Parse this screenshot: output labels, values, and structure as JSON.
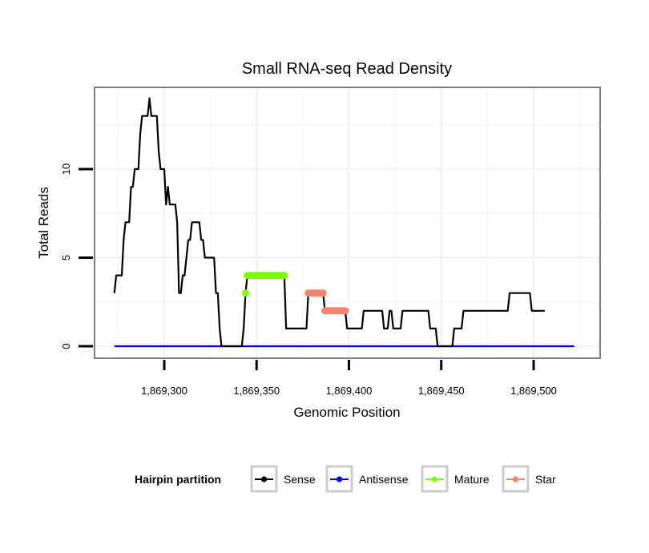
{
  "chart_data": {
    "type": "line",
    "title": "Small RNA-seq Read Density",
    "xlabel": "Genomic Position",
    "ylabel": "Total Reads",
    "xlim": [
      1869262,
      1869533
    ],
    "ylim": [
      -0.7,
      14.7
    ],
    "x_ticks": [
      {
        "value": 1869300,
        "label": "1,869,300"
      },
      {
        "value": 1869350,
        "label": "1,869,350"
      },
      {
        "value": 1869400,
        "label": "1,869,400"
      },
      {
        "value": 1869450,
        "label": "1,869,450"
      },
      {
        "value": 1869500,
        "label": "1,869,500"
      }
    ],
    "y_ticks": [
      {
        "value": 0,
        "label": "0"
      },
      {
        "value": 5,
        "label": "5"
      },
      {
        "value": 10,
        "label": "10"
      }
    ],
    "x_minor": [
      1869275,
      1869325,
      1869375,
      1869425,
      1869475,
      1869525
    ],
    "y_minor": [
      2.5,
      7.5,
      12.5
    ],
    "grid": true,
    "legend": {
      "title": "Hairpin partition",
      "position": "bottom",
      "entries": [
        {
          "name": "Sense",
          "color": "#000000"
        },
        {
          "name": "Antisense",
          "color": "#0000ff"
        },
        {
          "name": "Mature",
          "color": "#7fff00"
        },
        {
          "name": "Star",
          "color": "#fa8072"
        }
      ]
    },
    "series": [
      {
        "name": "Sense",
        "color": "#000000",
        "style": "line",
        "points": [
          [
            1869273,
            3
          ],
          [
            1869274,
            4
          ],
          [
            1869275,
            4
          ],
          [
            1869276,
            4
          ],
          [
            1869277,
            4
          ],
          [
            1869278,
            6
          ],
          [
            1869279,
            7
          ],
          [
            1869280,
            7
          ],
          [
            1869281,
            7
          ],
          [
            1869282,
            9
          ],
          [
            1869283,
            9
          ],
          [
            1869284,
            10
          ],
          [
            1869285,
            10
          ],
          [
            1869286,
            10
          ],
          [
            1869287,
            12
          ],
          [
            1869288,
            13
          ],
          [
            1869289,
            13
          ],
          [
            1869290,
            13
          ],
          [
            1869291,
            13
          ],
          [
            1869292,
            14
          ],
          [
            1869293,
            13
          ],
          [
            1869294,
            13
          ],
          [
            1869295,
            13
          ],
          [
            1869296,
            13
          ],
          [
            1869297,
            11
          ],
          [
            1869298,
            10
          ],
          [
            1869299,
            10
          ],
          [
            1869300,
            10
          ],
          [
            1869301,
            8
          ],
          [
            1869302,
            9
          ],
          [
            1869303,
            8
          ],
          [
            1869304,
            8
          ],
          [
            1869305,
            8
          ],
          [
            1869306,
            8
          ],
          [
            1869307,
            7
          ],
          [
            1869308,
            3
          ],
          [
            1869309,
            3
          ],
          [
            1869310,
            4
          ],
          [
            1869311,
            4
          ],
          [
            1869312,
            5
          ],
          [
            1869313,
            6
          ],
          [
            1869314,
            6
          ],
          [
            1869315,
            7
          ],
          [
            1869316,
            7
          ],
          [
            1869317,
            7
          ],
          [
            1869318,
            7
          ],
          [
            1869319,
            7
          ],
          [
            1869320,
            6
          ],
          [
            1869321,
            6
          ],
          [
            1869322,
            5
          ],
          [
            1869323,
            5
          ],
          [
            1869324,
            5
          ],
          [
            1869325,
            5
          ],
          [
            1869326,
            5
          ],
          [
            1869327,
            5
          ],
          [
            1869328,
            3
          ],
          [
            1869329,
            3
          ],
          [
            1869330,
            1
          ],
          [
            1869331,
            0
          ],
          [
            1869332,
            0
          ],
          [
            1869333,
            0
          ],
          [
            1869334,
            0
          ],
          [
            1869335,
            0
          ],
          [
            1869336,
            0
          ],
          [
            1869337,
            0
          ],
          [
            1869338,
            0
          ],
          [
            1869339,
            0
          ],
          [
            1869340,
            0
          ],
          [
            1869341,
            0
          ],
          [
            1869342,
            0
          ],
          [
            1869343,
            1
          ],
          [
            1869344,
            3
          ],
          [
            1869345,
            4
          ],
          [
            1869346,
            4
          ],
          [
            1869347,
            4
          ],
          [
            1869348,
            4
          ],
          [
            1869349,
            4
          ],
          [
            1869350,
            4
          ],
          [
            1869351,
            4
          ],
          [
            1869352,
            4
          ],
          [
            1869353,
            4
          ],
          [
            1869354,
            4
          ],
          [
            1869355,
            4
          ],
          [
            1869356,
            4
          ],
          [
            1869357,
            4
          ],
          [
            1869358,
            4
          ],
          [
            1869359,
            4
          ],
          [
            1869360,
            4
          ],
          [
            1869361,
            4
          ],
          [
            1869362,
            4
          ],
          [
            1869363,
            4
          ],
          [
            1869364,
            4
          ],
          [
            1869365,
            4
          ],
          [
            1869366,
            1
          ],
          [
            1869367,
            1
          ],
          [
            1869368,
            1
          ],
          [
            1869369,
            1
          ],
          [
            1869370,
            1
          ],
          [
            1869371,
            1
          ],
          [
            1869372,
            1
          ],
          [
            1869373,
            1
          ],
          [
            1869374,
            1
          ],
          [
            1869375,
            1
          ],
          [
            1869376,
            1
          ],
          [
            1869377,
            1
          ],
          [
            1869378,
            3
          ],
          [
            1869379,
            3
          ],
          [
            1869380,
            3
          ],
          [
            1869381,
            3
          ],
          [
            1869382,
            3
          ],
          [
            1869383,
            3
          ],
          [
            1869384,
            3
          ],
          [
            1869385,
            3
          ],
          [
            1869386,
            3
          ],
          [
            1869387,
            2
          ],
          [
            1869388,
            2
          ],
          [
            1869389,
            2
          ],
          [
            1869390,
            2
          ],
          [
            1869391,
            2
          ],
          [
            1869392,
            2
          ],
          [
            1869393,
            2
          ],
          [
            1869394,
            2
          ],
          [
            1869395,
            2
          ],
          [
            1869396,
            2
          ],
          [
            1869397,
            2
          ],
          [
            1869398,
            2
          ],
          [
            1869399,
            1
          ],
          [
            1869400,
            1
          ],
          [
            1869401,
            1
          ],
          [
            1869402,
            1
          ],
          [
            1869403,
            1
          ],
          [
            1869404,
            1
          ],
          [
            1869405,
            1
          ],
          [
            1869406,
            1
          ],
          [
            1869407,
            1
          ],
          [
            1869408,
            2
          ],
          [
            1869409,
            2
          ],
          [
            1869410,
            2
          ],
          [
            1869411,
            2
          ],
          [
            1869412,
            2
          ],
          [
            1869413,
            2
          ],
          [
            1869414,
            2
          ],
          [
            1869415,
            2
          ],
          [
            1869416,
            2
          ],
          [
            1869417,
            2
          ],
          [
            1869418,
            2
          ],
          [
            1869419,
            1
          ],
          [
            1869420,
            1
          ],
          [
            1869421,
            1
          ],
          [
            1869422,
            2
          ],
          [
            1869423,
            2
          ],
          [
            1869424,
            1
          ],
          [
            1869425,
            1
          ],
          [
            1869426,
            1
          ],
          [
            1869427,
            1
          ],
          [
            1869428,
            1
          ],
          [
            1869429,
            2
          ],
          [
            1869430,
            2
          ],
          [
            1869431,
            2
          ],
          [
            1869432,
            2
          ],
          [
            1869433,
            2
          ],
          [
            1869434,
            2
          ],
          [
            1869435,
            2
          ],
          [
            1869436,
            2
          ],
          [
            1869437,
            2
          ],
          [
            1869438,
            2
          ],
          [
            1869439,
            2
          ],
          [
            1869440,
            2
          ],
          [
            1869441,
            2
          ],
          [
            1869442,
            2
          ],
          [
            1869443,
            2
          ],
          [
            1869444,
            1
          ],
          [
            1869445,
            1
          ],
          [
            1869446,
            1
          ],
          [
            1869447,
            1
          ],
          [
            1869448,
            0
          ],
          [
            1869449,
            0
          ],
          [
            1869450,
            0
          ],
          [
            1869451,
            0
          ],
          [
            1869452,
            0
          ],
          [
            1869453,
            0
          ],
          [
            1869454,
            0
          ],
          [
            1869455,
            0
          ],
          [
            1869456,
            0
          ],
          [
            1869457,
            1
          ],
          [
            1869458,
            1
          ],
          [
            1869459,
            1
          ],
          [
            1869460,
            1
          ],
          [
            1869461,
            1
          ],
          [
            1869462,
            2
          ],
          [
            1869463,
            2
          ],
          [
            1869464,
            2
          ],
          [
            1869465,
            2
          ],
          [
            1869466,
            2
          ],
          [
            1869467,
            2
          ],
          [
            1869468,
            2
          ],
          [
            1869469,
            2
          ],
          [
            1869470,
            2
          ],
          [
            1869471,
            2
          ],
          [
            1869472,
            2
          ],
          [
            1869473,
            2
          ],
          [
            1869474,
            2
          ],
          [
            1869475,
            2
          ],
          [
            1869476,
            2
          ],
          [
            1869477,
            2
          ],
          [
            1869478,
            2
          ],
          [
            1869479,
            2
          ],
          [
            1869480,
            2
          ],
          [
            1869481,
            2
          ],
          [
            1869482,
            2
          ],
          [
            1869483,
            2
          ],
          [
            1869484,
            2
          ],
          [
            1869485,
            2
          ],
          [
            1869486,
            2
          ],
          [
            1869487,
            3
          ],
          [
            1869488,
            3
          ],
          [
            1869489,
            3
          ],
          [
            1869490,
            3
          ],
          [
            1869491,
            3
          ],
          [
            1869492,
            3
          ],
          [
            1869493,
            3
          ],
          [
            1869494,
            3
          ],
          [
            1869495,
            3
          ],
          [
            1869496,
            3
          ],
          [
            1869497,
            3
          ],
          [
            1869498,
            3
          ],
          [
            1869499,
            2
          ],
          [
            1869500,
            2
          ],
          [
            1869501,
            2
          ],
          [
            1869502,
            2
          ],
          [
            1869503,
            2
          ],
          [
            1869504,
            2
          ],
          [
            1869505,
            2
          ],
          [
            1869506,
            2
          ]
        ]
      },
      {
        "name": "Antisense",
        "color": "#0000ff",
        "style": "line",
        "points": [
          [
            1869273,
            0
          ],
          [
            1869522,
            0
          ]
        ]
      },
      {
        "name": "Mature",
        "color": "#7fff00",
        "style": "line+points",
        "points": [
          [
            1869344,
            3
          ],
          [
            1869345,
            4
          ],
          [
            1869346,
            4
          ],
          [
            1869347,
            4
          ],
          [
            1869348,
            4
          ],
          [
            1869349,
            4
          ],
          [
            1869350,
            4
          ],
          [
            1869351,
            4
          ],
          [
            1869352,
            4
          ],
          [
            1869353,
            4
          ],
          [
            1869354,
            4
          ],
          [
            1869355,
            4
          ],
          [
            1869356,
            4
          ],
          [
            1869357,
            4
          ],
          [
            1869358,
            4
          ],
          [
            1869359,
            4
          ],
          [
            1869360,
            4
          ],
          [
            1869361,
            4
          ],
          [
            1869362,
            4
          ],
          [
            1869363,
            4
          ],
          [
            1869364,
            4
          ],
          [
            1869365,
            4
          ]
        ]
      },
      {
        "name": "Star",
        "color": "#fa8072",
        "style": "line+points",
        "points": [
          [
            1869378,
            3
          ],
          [
            1869379,
            3
          ],
          [
            1869380,
            3
          ],
          [
            1869381,
            3
          ],
          [
            1869382,
            3
          ],
          [
            1869383,
            3
          ],
          [
            1869384,
            3
          ],
          [
            1869385,
            3
          ],
          [
            1869386,
            3
          ],
          [
            1869387,
            2
          ],
          [
            1869388,
            2
          ],
          [
            1869389,
            2
          ],
          [
            1869390,
            2
          ],
          [
            1869391,
            2
          ],
          [
            1869392,
            2
          ],
          [
            1869393,
            2
          ],
          [
            1869394,
            2
          ],
          [
            1869395,
            2
          ],
          [
            1869396,
            2
          ],
          [
            1869397,
            2
          ],
          [
            1869398,
            2
          ]
        ]
      }
    ]
  }
}
